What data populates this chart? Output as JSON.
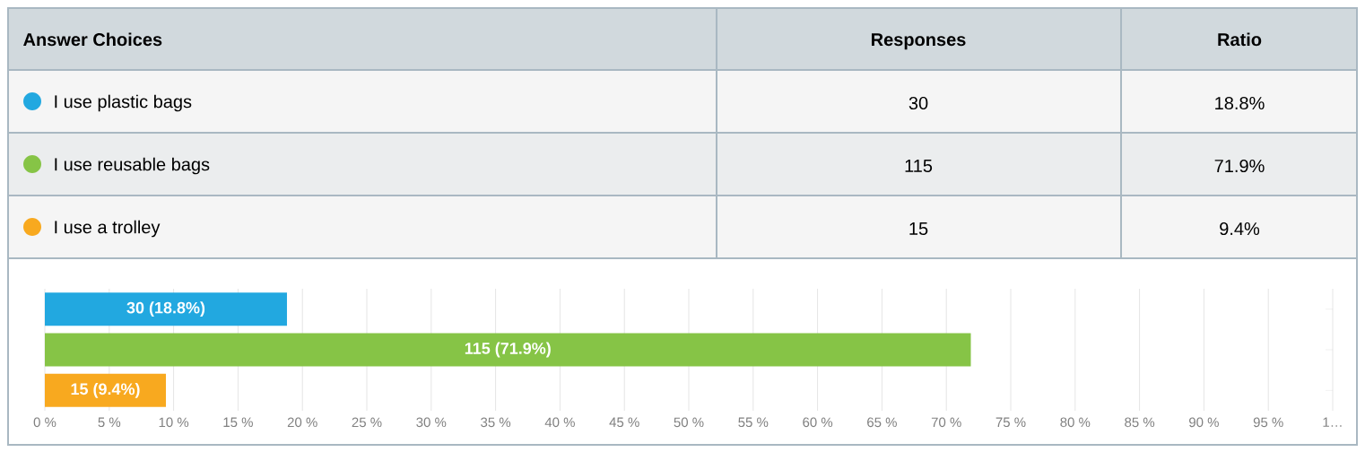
{
  "chart_data": {
    "type": "bar",
    "orientation": "horizontal",
    "categories": [
      null,
      null,
      null
    ],
    "series": [
      {
        "name": "I use plastic bags",
        "color": "#22a8e0",
        "values": [
          18.8,
          null,
          null
        ],
        "value_labels": [
          "30 (18.8%)",
          null,
          null
        ]
      },
      {
        "name": "I use reusable bags",
        "color": "#86c446",
        "values": [
          null,
          71.9,
          null
        ],
        "value_labels": [
          null,
          "115 (71.9%)",
          null
        ]
      },
      {
        "name": "I use a trolley",
        "color": "#f8a91f",
        "values": [
          null,
          null,
          9.4
        ],
        "value_labels": [
          null,
          null,
          "15 (9.4%)"
        ]
      }
    ],
    "legend": "top",
    "annotations": [
      "Answer Choices",
      "Responses",
      "Ratio",
      "30",
      "18.8%",
      "115",
      "71.9%",
      "15",
      "9.4%"
    ],
    "xlim": [
      0,
      100
    ],
    "xticks": [
      {
        "value": 0,
        "label": "0 %"
      },
      {
        "value": 5,
        "label": "5 %"
      },
      {
        "value": 10,
        "label": "10 %"
      },
      {
        "value": 15,
        "label": "15 %"
      },
      {
        "value": 20,
        "label": "20 %"
      },
      {
        "value": 25,
        "label": "25 %"
      },
      {
        "value": 30,
        "label": "30 %"
      },
      {
        "value": 35,
        "label": "35 %"
      },
      {
        "value": 40,
        "label": "40 %"
      },
      {
        "value": 45,
        "label": "45 %"
      },
      {
        "value": 50,
        "label": "50 %"
      },
      {
        "value": 55,
        "label": "55 %"
      },
      {
        "value": 60,
        "label": "60 %"
      },
      {
        "value": 65,
        "label": "65 %"
      },
      {
        "value": 70,
        "label": "70 %"
      },
      {
        "value": 75,
        "label": "75 %"
      },
      {
        "value": 80,
        "label": "80 %"
      },
      {
        "value": 85,
        "label": "85 %"
      },
      {
        "value": 90,
        "label": "90 %"
      },
      {
        "value": 95,
        "label": "95 %"
      },
      {
        "value": 100,
        "label": "1…"
      }
    ],
    "grid": "x",
    "tick_labels": "x"
  }
}
